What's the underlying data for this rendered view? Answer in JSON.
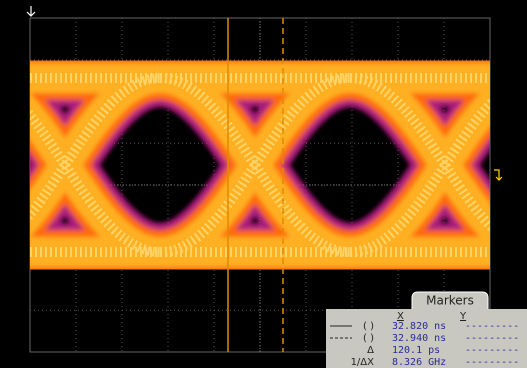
{
  "screen": {
    "markers_panel": {
      "title": "Markers",
      "columns": [
        "X",
        "Y"
      ],
      "rows": [
        {
          "label": "( )",
          "x": "32.820 ns",
          "y": "---------"
        },
        {
          "label": "( )",
          "x": "32.940 ns",
          "y": "---------"
        },
        {
          "label": "Δ",
          "x": "120.1 ps",
          "y": "---------"
        },
        {
          "label": "1/ΔX",
          "x": "8.326 GHz",
          "y": "---------"
        }
      ]
    }
  }
}
